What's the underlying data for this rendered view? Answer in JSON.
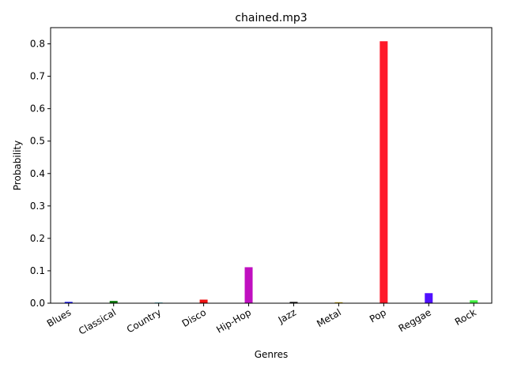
{
  "chart_data": {
    "type": "bar",
    "title": "chained.mp3",
    "xlabel": "Genres",
    "ylabel": "Probability",
    "categories": [
      "Blues",
      "Classical",
      "Country",
      "Disco",
      "Hip-Hop",
      "Jazz",
      "Metal",
      "Pop",
      "Reggae",
      "Rock"
    ],
    "values": [
      0.004,
      0.007,
      0.002,
      0.011,
      0.111,
      0.004,
      0.003,
      0.808,
      0.031,
      0.009
    ],
    "colors": [
      "#0a0aff",
      "#0a7a0a",
      "#1aa6b8",
      "#ee1111",
      "#c010c0",
      "#111111",
      "#c8a814",
      "#ff1a2a",
      "#5010ff",
      "#40ee40"
    ],
    "ylim": [
      0,
      0.85
    ],
    "yticks": [
      "0.0",
      "0.1",
      "0.2",
      "0.3",
      "0.4",
      "0.5",
      "0.6",
      "0.7",
      "0.8"
    ],
    "grid": false,
    "legend": "none"
  }
}
